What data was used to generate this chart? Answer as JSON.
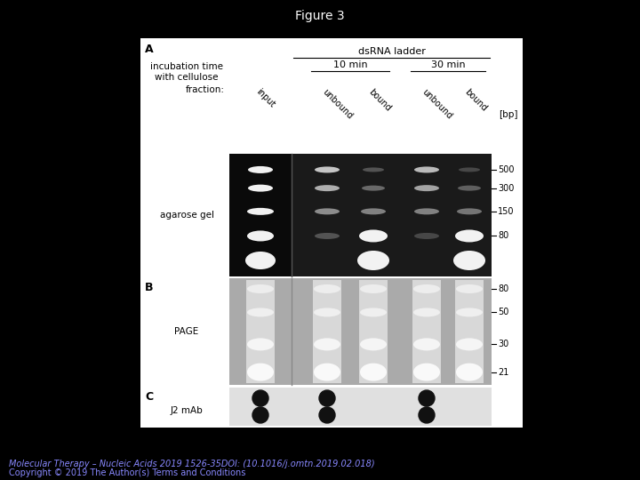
{
  "title": "Figure 3",
  "title_color": "#ffffff",
  "title_fontsize": 10,
  "background_color": "#000000",
  "footer_line1": "Molecular Therapy – Nucleic Acids 2019 1526-35DOI: (10.1016/j.omtn.2019.02.018)",
  "footer_line2": "Copyright © 2019 The Author(s) Terms and Conditions",
  "footer_color": "#8888ff",
  "footer_fontsize": 7,
  "section_A_label": "A",
  "section_B_label": "B",
  "section_C_label": "C",
  "dsrna_label": "dsRNA ladder",
  "min10_label": "10 min",
  "min30_label": "30 min",
  "fraction_label": "fraction:",
  "incubation_label": "incubation time\nwith cellulose",
  "agarose_label": "agarose gel",
  "page_label": "PAGE",
  "j2_label": "J2 mAb",
  "bp_label": "[bp]",
  "bp_ticks_A": [
    "500",
    "300",
    "150",
    "80"
  ],
  "bp_ticks_B": [
    "80",
    "50",
    "30",
    "21"
  ],
  "lane_labels": [
    "input",
    "unbound",
    "bound",
    "unbound",
    "bound"
  ]
}
